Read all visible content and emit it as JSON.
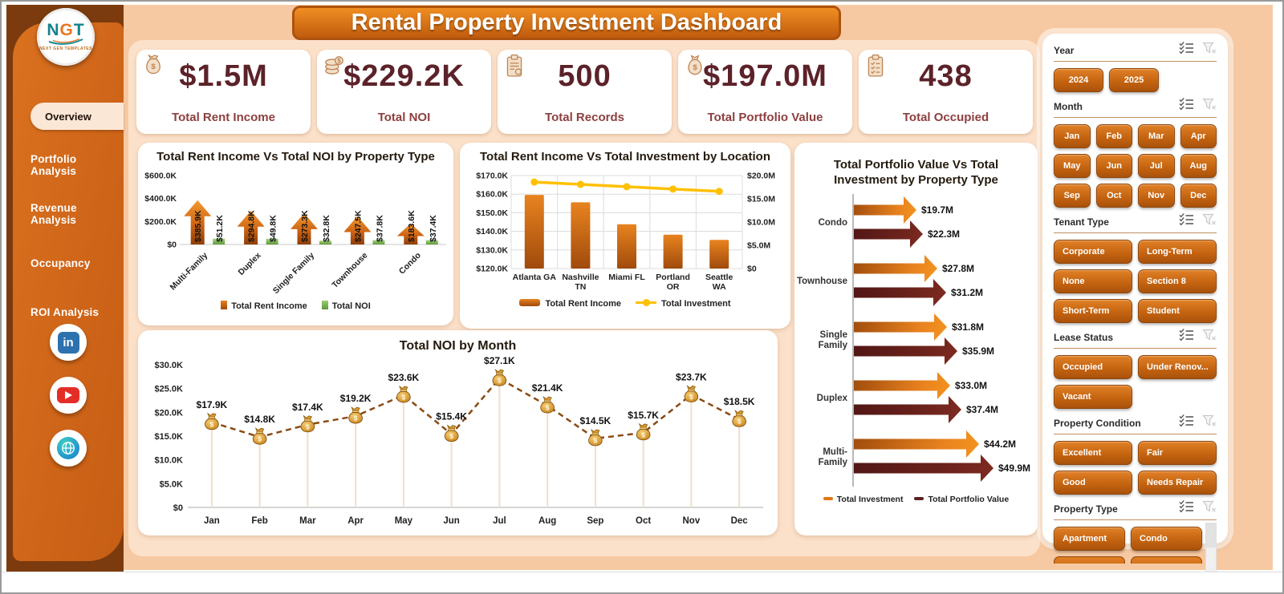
{
  "title": "Rental Property Investment Dashboard",
  "sidebar": {
    "logo": {
      "l1": "N",
      "l2": "G",
      "l3": "T",
      "caption": "NEXT GEN TEMPLATES"
    },
    "items": [
      {
        "label": "Overview",
        "active": true
      },
      {
        "label": "Portfolio Analysis",
        "active": false
      },
      {
        "label": "Revenue Analysis",
        "active": false
      },
      {
        "label": "Occupancy",
        "active": false
      },
      {
        "label": "ROI Analysis",
        "active": false
      }
    ],
    "social": [
      {
        "name": "linkedin",
        "glyph": "in"
      },
      {
        "name": "youtube"
      },
      {
        "name": "website"
      }
    ]
  },
  "kpis": [
    {
      "icon": "money-bag",
      "value": "$1.5M",
      "label": "Total Rent Income"
    },
    {
      "icon": "coins",
      "value": "$229.2K",
      "label": "Total NOI"
    },
    {
      "icon": "clipboard",
      "value": "500",
      "label": "Total Records"
    },
    {
      "icon": "money-sack",
      "value": "$197.0M",
      "label": "Total Portfolio Value"
    },
    {
      "icon": "clipboard-check",
      "value": "438",
      "label": "Total Occupied"
    }
  ],
  "chart_data": [
    {
      "id": "rent-vs-noi-by-property-type",
      "type": "bar",
      "title": "Total Rent Income Vs Total NOI by Property Type",
      "categories": [
        "Multi-Family",
        "Duplex",
        "Single Family",
        "Townhouse",
        "Condo"
      ],
      "series": [
        {
          "name": "Total Rent Income",
          "color": "#C55A11",
          "values_k": [
            385.9,
            294.8,
            273.3,
            247.5,
            183.6
          ],
          "labels": [
            "$385.9K",
            "$294.8K",
            "$273.3K",
            "$247.5K",
            "$183.6K"
          ]
        },
        {
          "name": "Total NOI",
          "color": "#70AD47",
          "values_k": [
            51.2,
            49.8,
            32.8,
            37.8,
            37.4
          ],
          "labels": [
            "$51.2K",
            "$49.8K",
            "$32.8K",
            "$37.8K",
            "$37.4K"
          ]
        }
      ],
      "ylim_k": [
        0,
        600
      ],
      "y_tick_values": [
        600,
        400,
        200,
        0
      ],
      "y_tick_labels": [
        "$600.0K",
        "$400.0K",
        "$200.0K",
        "$0"
      ],
      "legend_position": "bottom",
      "grid": false
    },
    {
      "id": "rent-vs-investment-by-location",
      "type": "bar+line",
      "title": "Total Rent Income Vs Total Investment by Location",
      "categories": [
        "Atlanta GA",
        "Nashville TN",
        "Miami FL",
        "Portland OR",
        "Seattle WA"
      ],
      "category_lines": [
        [
          "Atlanta GA"
        ],
        [
          "Nashville",
          "TN"
        ],
        [
          "Miami FL"
        ],
        [
          "Portland",
          "OR"
        ],
        [
          "Seattle",
          "WA"
        ]
      ],
      "bar_series": {
        "name": "Total Rent Income",
        "color": "#C55A11",
        "values_k": [
          159.6,
          155.6,
          143.8,
          138.2,
          135.4
        ]
      },
      "line_series": {
        "name": "Total Investment",
        "color": "#FFC000",
        "values_m": [
          18.6,
          18.1,
          17.6,
          17.1,
          16.6
        ]
      },
      "left_lim_k": [
        120,
        170
      ],
      "left_tick_values": [
        170,
        160,
        150,
        140,
        130,
        120
      ],
      "left_tick_labels": [
        "$170.0K",
        "$160.0K",
        "$150.0K",
        "$140.0K",
        "$130.0K",
        "$120.0K"
      ],
      "right_lim_m": [
        0,
        20
      ],
      "right_tick_labels": [
        "$20.0M",
        "$15.0M",
        "$10.0M",
        "$5.0M",
        "$0"
      ],
      "legend_position": "bottom",
      "grid": true
    },
    {
      "id": "portfolio-vs-investment-by-property-type",
      "type": "bar-horizontal",
      "title": "Total Portfolio Value Vs Total Investment by Property Type",
      "categories": [
        "Condo",
        "Townhouse",
        "Single Family",
        "Duplex",
        "Multi-Family"
      ],
      "series": [
        {
          "name": "Total Investment",
          "color": "#E3760F",
          "values_m": [
            19.7,
            27.8,
            31.8,
            33.0,
            44.2
          ],
          "labels": [
            "$19.7M",
            "$27.8M",
            "$31.8M",
            "$33.0M",
            "$44.2M"
          ]
        },
        {
          "name": "Total Portfolio Value",
          "color": "#5E1F1F",
          "values_m": [
            22.3,
            31.2,
            35.9,
            37.4,
            49.9
          ],
          "labels": [
            "$22.3M",
            "$31.2M",
            "$35.9M",
            "$37.4M",
            "$49.9M"
          ]
        }
      ],
      "xlim_m": [
        0,
        50
      ],
      "legend_position": "bottom",
      "grid": false
    },
    {
      "id": "noi-by-month",
      "type": "line",
      "title": "Total NOI by Month",
      "categories": [
        "Jan",
        "Feb",
        "Mar",
        "Apr",
        "May",
        "Jun",
        "Jul",
        "Aug",
        "Sep",
        "Oct",
        "Nov",
        "Dec"
      ],
      "values_k": [
        17.9,
        14.8,
        17.4,
        19.2,
        23.6,
        15.4,
        27.1,
        21.4,
        14.5,
        15.7,
        23.7,
        18.5
      ],
      "labels": [
        "$17.9K",
        "$14.8K",
        "$17.4K",
        "$19.2K",
        "$23.6K",
        "$15.4K",
        "$27.1K",
        "$21.4K",
        "$14.5K",
        "$15.7K",
        "$23.7K",
        "$18.5K"
      ],
      "ylim_k": [
        0,
        30
      ],
      "y_tick_values": [
        30,
        25,
        20,
        15,
        10,
        5,
        0
      ],
      "y_tick_labels": [
        "$30.0K",
        "$25.0K",
        "$20.0K",
        "$15.0K",
        "$10.0K",
        "$5.0K",
        "$0"
      ],
      "line_style": "dashed",
      "marker": "money-bag",
      "grid": false
    }
  ],
  "slicers": {
    "sections": [
      {
        "label": "Year",
        "cols": "year",
        "options": [
          "2024",
          "2025"
        ]
      },
      {
        "label": "Month",
        "cols": "4",
        "options": [
          "Jan",
          "Feb",
          "Mar",
          "Apr",
          "May",
          "Jun",
          "Jul",
          "Aug",
          "Sep",
          "Oct",
          "Nov",
          "Dec"
        ]
      },
      {
        "label": "Tenant Type",
        "cols": "2",
        "options": [
          "Corporate",
          "Long-Term",
          "None",
          "Section 8",
          "Short-Term",
          "Student"
        ]
      },
      {
        "label": "Lease Status",
        "cols": "2",
        "options": [
          "Occupied",
          "Under Renov...",
          "Vacant"
        ]
      },
      {
        "label": "Property Condition",
        "cols": "2",
        "options": [
          "Excellent",
          "Fair",
          "Good",
          "Needs Repair"
        ]
      },
      {
        "label": "Property Type",
        "cols": "2",
        "options": [
          "Apartment",
          "Condo"
        ],
        "scrollbar": true,
        "clipped": true
      }
    ]
  },
  "colors": {
    "frame_brown": "#7B3B0E",
    "sidebar_orange": "#CE6418",
    "band_peach": "#F7C9A2",
    "panel_peach": "#FCE1CA",
    "accent_orange": "#C55A11",
    "noi_green": "#70AD47",
    "investment_yellow": "#FFC000",
    "portfolio_maroon": "#5E1F1F",
    "kpi_value": "#5C2229",
    "kpi_label": "#8D3F3F"
  }
}
